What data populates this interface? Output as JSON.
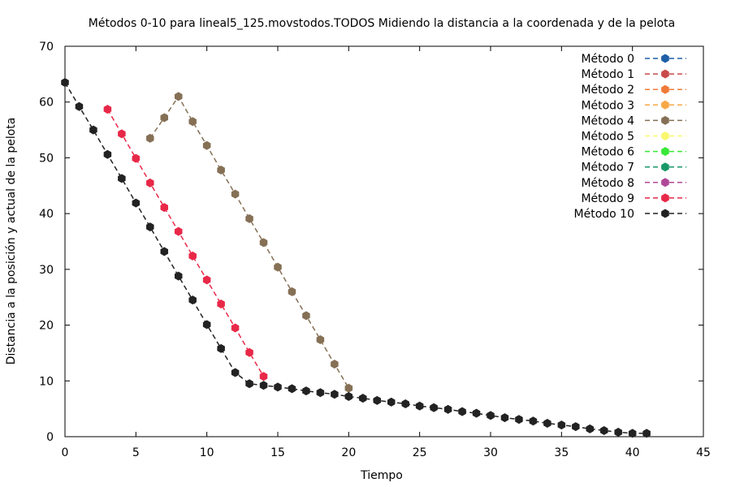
{
  "chart_data": {
    "type": "line",
    "title": "Métodos 0-10 para lineal5_125.movstodos.TODOS Midiendo la distancia a la coordenada y de la pelota",
    "xlabel": "Tiempo",
    "ylabel": "Distancia a la posición y actual de la pelota",
    "xlim": [
      0,
      45
    ],
    "ylim": [
      0,
      70
    ],
    "xticks": [
      0,
      5,
      10,
      15,
      20,
      25,
      30,
      35,
      40,
      45
    ],
    "yticks": [
      0,
      10,
      20,
      30,
      40,
      50,
      60,
      70
    ],
    "grid": false,
    "legend_position": "top-right",
    "series": [
      {
        "name": "Método 0",
        "color": "#1f5ea8",
        "x": [],
        "y": []
      },
      {
        "name": "Método 1",
        "color": "#c94a4a",
        "x": [],
        "y": []
      },
      {
        "name": "Método 2",
        "color": "#f07a38",
        "x": [],
        "y": []
      },
      {
        "name": "Método 3",
        "color": "#f8a848",
        "x": [],
        "y": []
      },
      {
        "name": "Método 4",
        "color": "#857055",
        "x": [
          6,
          7,
          8,
          9,
          10,
          11,
          12,
          13,
          14,
          15,
          16,
          17,
          18,
          19,
          20
        ],
        "y": [
          53.5,
          57.2,
          61.0,
          56.5,
          52.2,
          47.8,
          43.5,
          39.1,
          34.8,
          30.4,
          26.0,
          21.7,
          17.4,
          13.0,
          8.7
        ]
      },
      {
        "name": "Método 5",
        "color": "#f8f870",
        "x": [],
        "y": []
      },
      {
        "name": "Método 6",
        "color": "#38e838",
        "x": [],
        "y": []
      },
      {
        "name": "Método 7",
        "color": "#189868",
        "x": [],
        "y": []
      },
      {
        "name": "Método 8",
        "color": "#b04898",
        "x": [],
        "y": []
      },
      {
        "name": "Método 9",
        "color": "#e82848",
        "x": [
          3,
          4,
          5,
          6,
          7,
          8,
          9,
          10,
          11,
          12,
          13,
          14
        ],
        "y": [
          58.7,
          54.3,
          49.9,
          45.5,
          41.1,
          36.8,
          32.4,
          28.1,
          23.8,
          19.5,
          15.1,
          10.8
        ]
      },
      {
        "name": "Método 10",
        "color": "#222222",
        "x": [
          0,
          1,
          2,
          3,
          4,
          5,
          6,
          7,
          8,
          9,
          10,
          11,
          12,
          13,
          14,
          15,
          16,
          17,
          18,
          19,
          20,
          21,
          22,
          23,
          24,
          25,
          26,
          27,
          28,
          29,
          30,
          31,
          32,
          33,
          34,
          35,
          36,
          37,
          38,
          39,
          40,
          41
        ],
        "y": [
          63.5,
          59.2,
          55.0,
          50.6,
          46.3,
          41.9,
          37.6,
          33.2,
          28.8,
          24.5,
          20.1,
          15.8,
          11.5,
          9.5,
          9.2,
          8.9,
          8.6,
          8.2,
          7.9,
          7.6,
          7.2,
          6.9,
          6.5,
          6.2,
          5.9,
          5.5,
          5.2,
          4.9,
          4.5,
          4.2,
          3.8,
          3.4,
          3.1,
          2.8,
          2.4,
          2.1,
          1.8,
          1.4,
          1.1,
          0.8,
          0.6,
          0.6
        ]
      }
    ]
  }
}
